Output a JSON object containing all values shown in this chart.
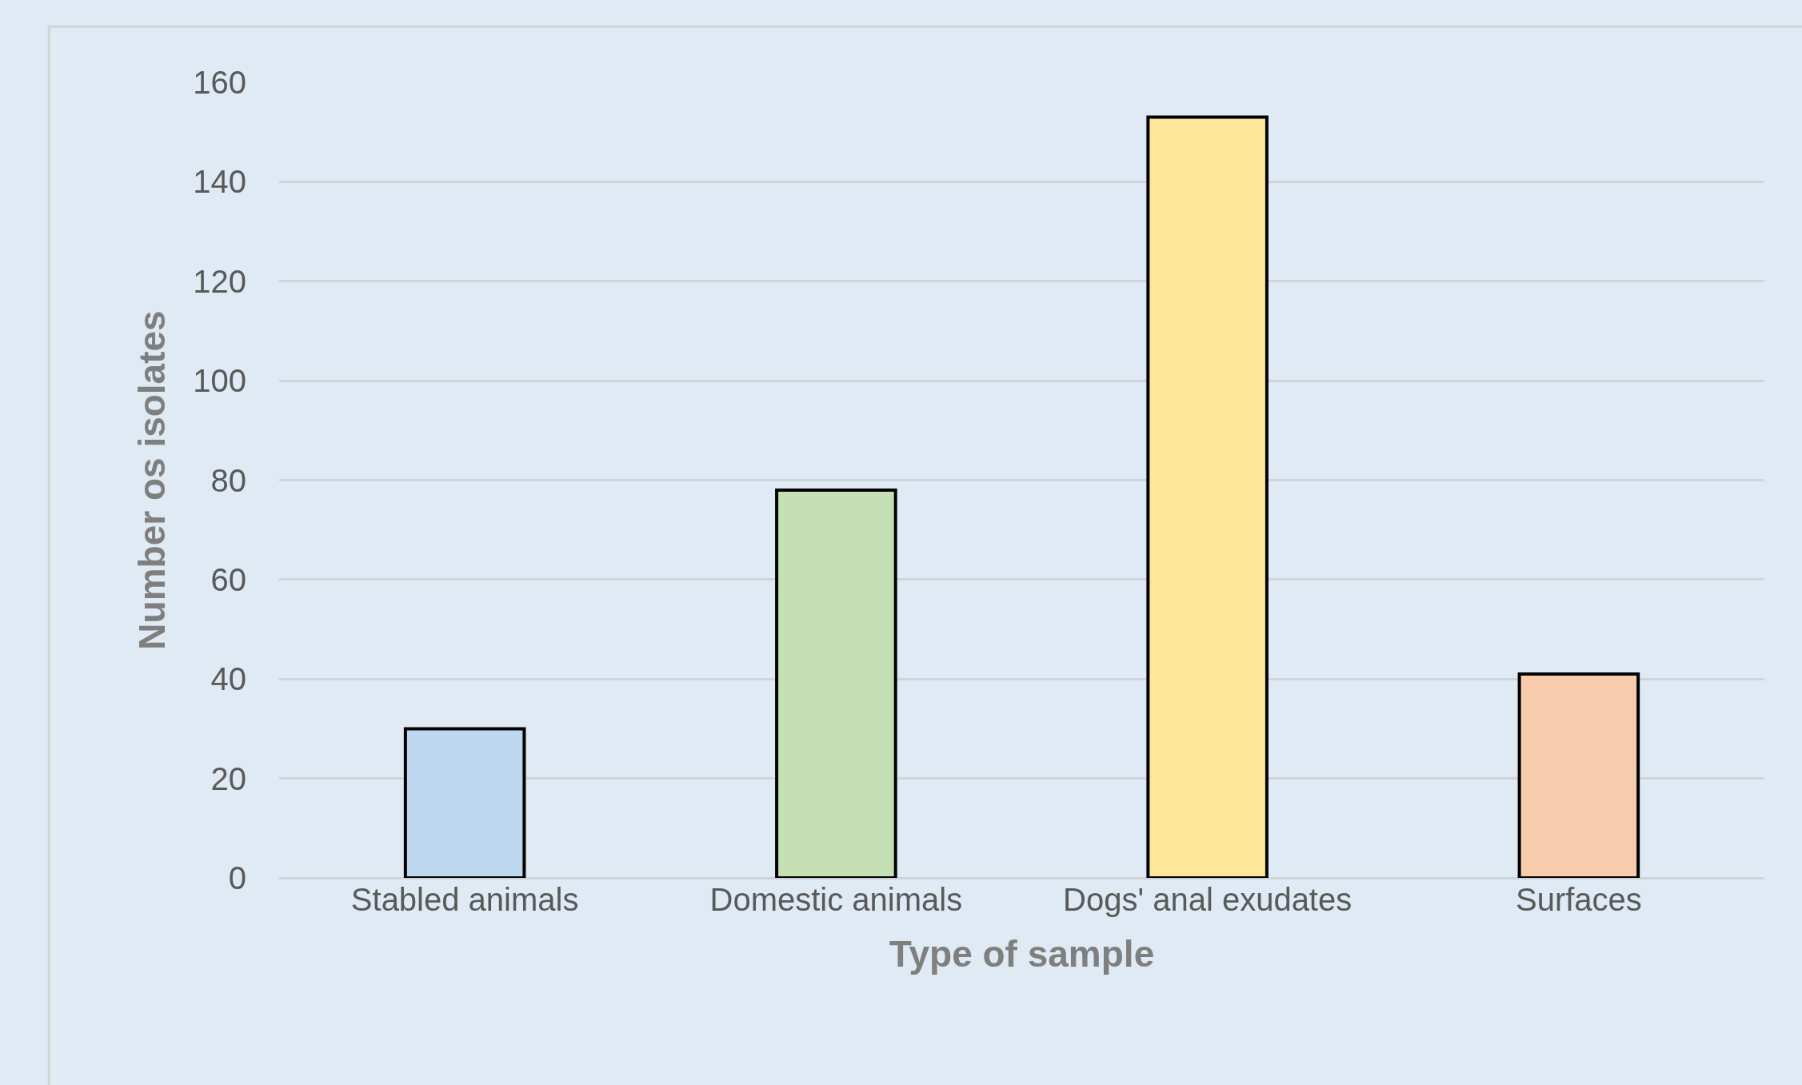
{
  "chart_data": {
    "type": "bar",
    "xlabel": "Type of sample",
    "ylabel": "Number os isolates",
    "categories": [
      "Stabled animals",
      "Domestic animals",
      "Dogs' anal exudates",
      "Surfaces"
    ],
    "values": [
      30,
      78,
      153,
      41
    ],
    "colors": [
      "#bdd7ee",
      "#c5e0b4",
      "#ffe699",
      "#f8cbad"
    ],
    "ylim": [
      0,
      160
    ],
    "yticks": [
      0,
      20,
      40,
      60,
      80,
      100,
      120,
      140,
      160
    ],
    "grid": "y",
    "legend": false
  }
}
